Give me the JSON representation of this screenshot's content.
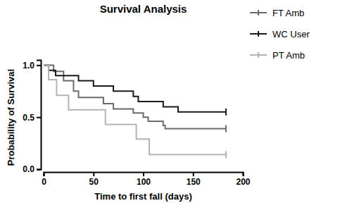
{
  "chart_data": {
    "type": "line",
    "line_style": "step",
    "marker": "tick",
    "title": "Survival Analysis",
    "x_label": "Time to first fall (days)",
    "y_label": "Probability of Survival",
    "xlim": [
      0,
      200
    ],
    "xticks": [
      0,
      50,
      100,
      150,
      200
    ],
    "ylim": [
      0,
      1.05
    ],
    "yticks": [
      {
        "value": 0,
        "label": "0.0"
      },
      {
        "value": 0.5,
        "label": "0.5"
      },
      {
        "value": 1,
        "label": "1.0"
      }
    ],
    "legend": "right",
    "series": [
      {
        "name": "FT Amb",
        "color": "#6b6b6b",
        "x": [
          0,
          10,
          20,
          30,
          35,
          60,
          70,
          90,
          100,
          105,
          120,
          122,
          183
        ],
        "values": [
          1.0,
          0.94,
          0.85,
          0.75,
          0.69,
          0.63,
          0.58,
          0.54,
          0.5,
          0.46,
          0.42,
          0.39,
          0.39
        ]
      },
      {
        "name": "WC User",
        "color": "#1a1a1a",
        "x": [
          0,
          5,
          12,
          35,
          50,
          70,
          90,
          95,
          120,
          135,
          183
        ],
        "values": [
          1.0,
          0.95,
          0.9,
          0.85,
          0.8,
          0.75,
          0.7,
          0.65,
          0.6,
          0.55,
          0.55
        ]
      },
      {
        "name": "PT Amb",
        "color": "#b3b3b3",
        "x": [
          0,
          5,
          13,
          25,
          62,
          93,
          106,
          183
        ],
        "values": [
          1.0,
          0.86,
          0.71,
          0.57,
          0.43,
          0.29,
          0.14,
          0.14
        ]
      }
    ]
  }
}
